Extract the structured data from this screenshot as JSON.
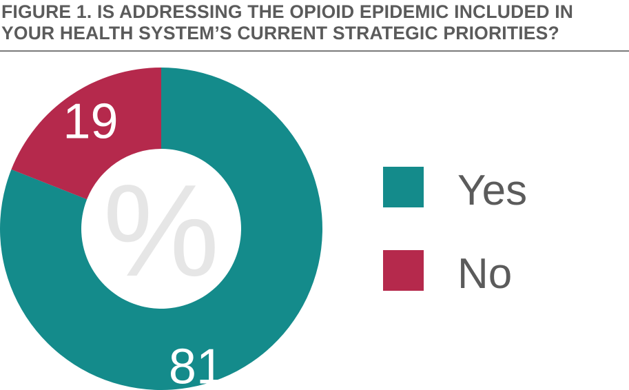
{
  "title": "FIGURE 1. IS ADDRESSING THE OPIOID EPIDEMIC INCLUDED IN YOUR HEALTH SYSTEM’S CURRENT STRATEGIC PRIORITIES?",
  "chart_data": {
    "type": "pie",
    "title": "FIGURE 1. IS ADDRESSING THE OPIOID EPIDEMIC INCLUDED IN YOUR HEALTH SYSTEM’S CURRENT STRATEGIC PRIORITIES?",
    "center_label": "%",
    "slices": [
      {
        "label": "Yes",
        "value": 81,
        "color": "#148b8b"
      },
      {
        "label": "No",
        "value": 19,
        "color": "#b5294c"
      }
    ],
    "legend_placement": "right"
  }
}
